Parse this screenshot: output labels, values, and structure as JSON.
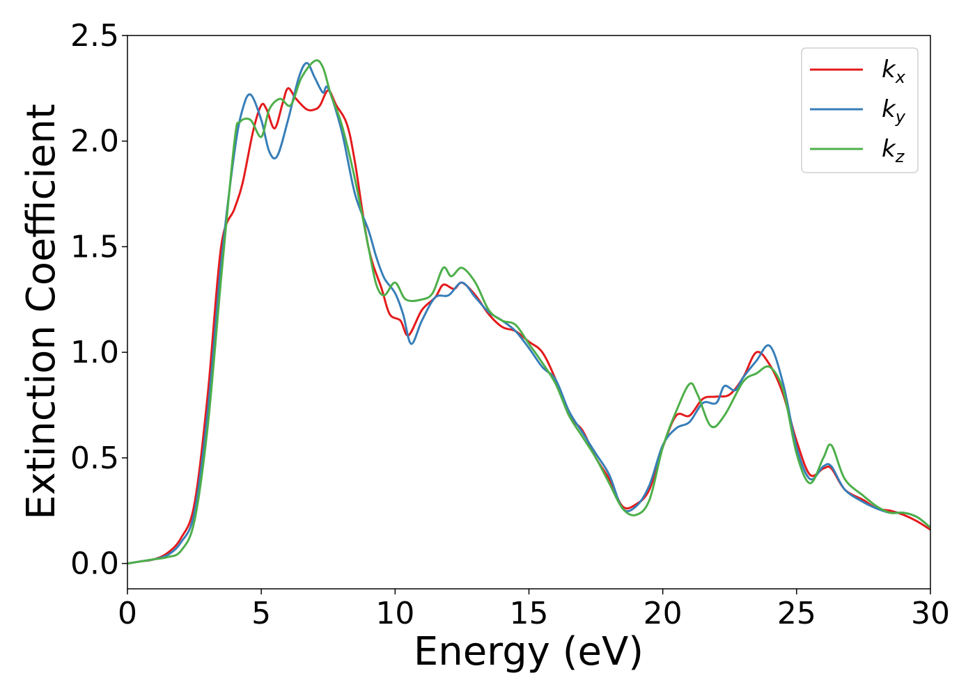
{
  "chart_data": {
    "type": "line",
    "title": "",
    "xlabel": "Energy (eV)",
    "ylabel": "Extinction Coefficient",
    "xlim": [
      0,
      30
    ],
    "ylim": [
      -0.12,
      2.5
    ],
    "grid": false,
    "legend_position": "top-right",
    "xticks": [
      0,
      5,
      10,
      15,
      20,
      25,
      30
    ],
    "xtick_labels": [
      "0",
      "5",
      "10",
      "15",
      "20",
      "25",
      "30"
    ],
    "yticks": [
      0.0,
      0.5,
      1.0,
      1.5,
      2.0,
      2.5
    ],
    "ytick_labels": [
      "0.0",
      "0.5",
      "1.0",
      "1.5",
      "2.0",
      "2.5"
    ],
    "series": [
      {
        "name": "k_x",
        "legend_base": "k",
        "legend_sub": "x",
        "color": "#e41a1c",
        "points": [
          [
            0,
            0
          ],
          [
            0.5,
            0.01
          ],
          [
            1,
            0.02
          ],
          [
            1.5,
            0.05
          ],
          [
            2,
            0.12
          ],
          [
            2.5,
            0.28
          ],
          [
            3,
            0.8
          ],
          [
            3.5,
            1.5
          ],
          [
            4,
            1.68
          ],
          [
            4.3,
            1.8
          ],
          [
            4.7,
            2.05
          ],
          [
            5,
            2.17
          ],
          [
            5.2,
            2.15
          ],
          [
            5.5,
            2.06
          ],
          [
            5.8,
            2.18
          ],
          [
            6,
            2.25
          ],
          [
            6.3,
            2.2
          ],
          [
            6.7,
            2.15
          ],
          [
            7,
            2.15
          ],
          [
            7.2,
            2.17
          ],
          [
            7.5,
            2.24
          ],
          [
            7.8,
            2.17
          ],
          [
            8.2,
            2.08
          ],
          [
            8.5,
            1.9
          ],
          [
            9,
            1.5
          ],
          [
            9.5,
            1.3
          ],
          [
            9.8,
            1.18
          ],
          [
            10.2,
            1.15
          ],
          [
            10.5,
            1.08
          ],
          [
            11,
            1.2
          ],
          [
            11.5,
            1.26
          ],
          [
            11.8,
            1.32
          ],
          [
            12.2,
            1.3
          ],
          [
            12.5,
            1.33
          ],
          [
            13,
            1.27
          ],
          [
            13.5,
            1.18
          ],
          [
            14,
            1.12
          ],
          [
            14.5,
            1.1
          ],
          [
            15,
            1.05
          ],
          [
            15.5,
            1.0
          ],
          [
            16,
            0.87
          ],
          [
            16.5,
            0.7
          ],
          [
            17,
            0.63
          ],
          [
            17.5,
            0.5
          ],
          [
            18,
            0.4
          ],
          [
            18.5,
            0.27
          ],
          [
            19,
            0.28
          ],
          [
            19.5,
            0.35
          ],
          [
            20,
            0.55
          ],
          [
            20.5,
            0.7
          ],
          [
            21,
            0.7
          ],
          [
            21.5,
            0.78
          ],
          [
            22,
            0.79
          ],
          [
            22.5,
            0.8
          ],
          [
            23,
            0.88
          ],
          [
            23.5,
            1.0
          ],
          [
            24,
            0.94
          ],
          [
            24.5,
            0.8
          ],
          [
            25,
            0.58
          ],
          [
            25.5,
            0.42
          ],
          [
            26,
            0.45
          ],
          [
            26.3,
            0.45
          ],
          [
            26.8,
            0.35
          ],
          [
            27.5,
            0.3
          ],
          [
            28,
            0.26
          ],
          [
            28.5,
            0.25
          ],
          [
            29,
            0.23
          ],
          [
            29.5,
            0.2
          ],
          [
            30,
            0.16
          ]
        ]
      },
      {
        "name": "k_y",
        "legend_base": "k",
        "legend_sub": "y",
        "color": "#377eb8",
        "points": [
          [
            0,
            0
          ],
          [
            0.5,
            0.01
          ],
          [
            1,
            0.02
          ],
          [
            1.5,
            0.04
          ],
          [
            2,
            0.1
          ],
          [
            2.5,
            0.24
          ],
          [
            3,
            0.72
          ],
          [
            3.5,
            1.42
          ],
          [
            4,
            1.95
          ],
          [
            4.3,
            2.15
          ],
          [
            4.6,
            2.22
          ],
          [
            5,
            2.1
          ],
          [
            5.3,
            1.95
          ],
          [
            5.6,
            1.93
          ],
          [
            6,
            2.1
          ],
          [
            6.4,
            2.3
          ],
          [
            6.7,
            2.37
          ],
          [
            7,
            2.3
          ],
          [
            7.3,
            2.23
          ],
          [
            7.5,
            2.25
          ],
          [
            8,
            2.05
          ],
          [
            8.5,
            1.75
          ],
          [
            9,
            1.58
          ],
          [
            9.3,
            1.45
          ],
          [
            9.6,
            1.35
          ],
          [
            10,
            1.28
          ],
          [
            10.3,
            1.18
          ],
          [
            10.6,
            1.04
          ],
          [
            11,
            1.15
          ],
          [
            11.5,
            1.26
          ],
          [
            12,
            1.27
          ],
          [
            12.5,
            1.33
          ],
          [
            13,
            1.26
          ],
          [
            13.5,
            1.19
          ],
          [
            14,
            1.15
          ],
          [
            14.5,
            1.1
          ],
          [
            15,
            1.02
          ],
          [
            15.5,
            0.93
          ],
          [
            16,
            0.87
          ],
          [
            16.5,
            0.72
          ],
          [
            17,
            0.62
          ],
          [
            17.5,
            0.52
          ],
          [
            18,
            0.42
          ],
          [
            18.5,
            0.26
          ],
          [
            19,
            0.27
          ],
          [
            19.5,
            0.37
          ],
          [
            20,
            0.56
          ],
          [
            20.5,
            0.64
          ],
          [
            21,
            0.67
          ],
          [
            21.5,
            0.76
          ],
          [
            22,
            0.76
          ],
          [
            22.3,
            0.84
          ],
          [
            22.7,
            0.82
          ],
          [
            23,
            0.88
          ],
          [
            23.5,
            0.96
          ],
          [
            24,
            1.03
          ],
          [
            24.5,
            0.85
          ],
          [
            25,
            0.55
          ],
          [
            25.5,
            0.4
          ],
          [
            26,
            0.46
          ],
          [
            26.3,
            0.46
          ],
          [
            26.8,
            0.35
          ],
          [
            27.5,
            0.29
          ],
          [
            28,
            0.26
          ],
          [
            28.5,
            0.24
          ],
          [
            29,
            0.24
          ],
          [
            29.5,
            0.22
          ],
          [
            30,
            0.17
          ]
        ]
      },
      {
        "name": "k_z",
        "legend_base": "k",
        "legend_sub": "z",
        "color": "#4daf4a",
        "points": [
          [
            0,
            0
          ],
          [
            0.5,
            0.01
          ],
          [
            1,
            0.02
          ],
          [
            1.5,
            0.03
          ],
          [
            2,
            0.06
          ],
          [
            2.5,
            0.2
          ],
          [
            3,
            0.65
          ],
          [
            3.5,
            1.35
          ],
          [
            4,
            2.0
          ],
          [
            4.2,
            2.09
          ],
          [
            4.6,
            2.1
          ],
          [
            5,
            2.02
          ],
          [
            5.3,
            2.15
          ],
          [
            5.7,
            2.2
          ],
          [
            6.1,
            2.17
          ],
          [
            6.5,
            2.3
          ],
          [
            7,
            2.38
          ],
          [
            7.3,
            2.35
          ],
          [
            7.6,
            2.22
          ],
          [
            8,
            2.08
          ],
          [
            8.5,
            1.82
          ],
          [
            9,
            1.5
          ],
          [
            9.3,
            1.32
          ],
          [
            9.6,
            1.27
          ],
          [
            10,
            1.33
          ],
          [
            10.4,
            1.25
          ],
          [
            11,
            1.25
          ],
          [
            11.4,
            1.28
          ],
          [
            11.8,
            1.4
          ],
          [
            12.1,
            1.36
          ],
          [
            12.5,
            1.4
          ],
          [
            13,
            1.33
          ],
          [
            13.5,
            1.2
          ],
          [
            14,
            1.15
          ],
          [
            14.5,
            1.13
          ],
          [
            15,
            1.04
          ],
          [
            15.5,
            0.95
          ],
          [
            16,
            0.85
          ],
          [
            16.5,
            0.7
          ],
          [
            17,
            0.6
          ],
          [
            17.5,
            0.5
          ],
          [
            18,
            0.38
          ],
          [
            18.5,
            0.26
          ],
          [
            19,
            0.23
          ],
          [
            19.5,
            0.3
          ],
          [
            20,
            0.55
          ],
          [
            20.5,
            0.72
          ],
          [
            21,
            0.85
          ],
          [
            21.3,
            0.8
          ],
          [
            21.8,
            0.65
          ],
          [
            22.3,
            0.7
          ],
          [
            23,
            0.86
          ],
          [
            23.5,
            0.9
          ],
          [
            24,
            0.93
          ],
          [
            24.5,
            0.82
          ],
          [
            25,
            0.52
          ],
          [
            25.5,
            0.38
          ],
          [
            26,
            0.5
          ],
          [
            26.3,
            0.56
          ],
          [
            26.8,
            0.4
          ],
          [
            27.5,
            0.32
          ],
          [
            28,
            0.27
          ],
          [
            28.5,
            0.24
          ],
          [
            29,
            0.24
          ],
          [
            29.5,
            0.22
          ],
          [
            30,
            0.17
          ]
        ]
      }
    ]
  }
}
